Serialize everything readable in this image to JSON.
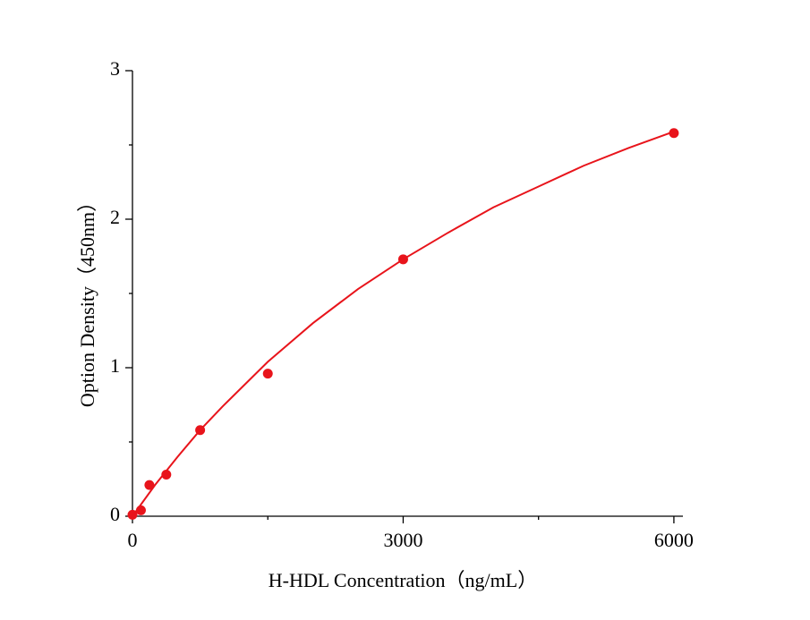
{
  "chart_data": {
    "type": "scatter",
    "x_label": "H-HDL Concentration（ng/mL）",
    "y_label": "Option Density（450nm）",
    "xlim": [
      0,
      6100
    ],
    "ylim": [
      0,
      3
    ],
    "xticks": [
      0,
      3000,
      6000
    ],
    "yticks": [
      0,
      1,
      2,
      3
    ],
    "xminorticks": [
      1500,
      4500
    ],
    "yminorticks": [
      0.5,
      1.5,
      2.5
    ],
    "series": [
      {
        "type": "scatter",
        "color": "#e8141b",
        "x": [
          0,
          93.75,
          187.5,
          375,
          750,
          1500,
          3000,
          6000
        ],
        "values": [
          0.01,
          0.04,
          0.21,
          0.28,
          0.58,
          0.96,
          1.73,
          2.58
        ]
      },
      {
        "type": "line",
        "color": "#e8141b",
        "x": [
          0,
          250,
          500,
          750,
          1000,
          1500,
          2000,
          2500,
          3000,
          3500,
          4000,
          4500,
          5000,
          5500,
          6000
        ],
        "values": [
          0,
          0.21,
          0.4,
          0.58,
          0.74,
          1.04,
          1.3,
          1.53,
          1.73,
          1.91,
          2.08,
          2.22,
          2.36,
          2.48,
          2.59
        ]
      }
    ]
  }
}
